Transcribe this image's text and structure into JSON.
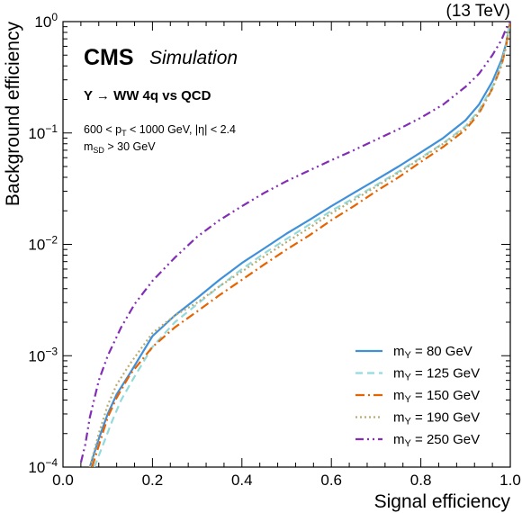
{
  "chart_data": {
    "type": "line",
    "energy_label": "(13 TeV)",
    "experiment": "CMS",
    "experiment_sub": "Simulation",
    "process_label": "Y → WW 4q vs QCD",
    "cut_label_1": "600 < p",
    "cut_label_1_sub": "T",
    "cut_label_1_rest": " < 1000 GeV, |η| < 2.4",
    "cut_label_2": "m",
    "cut_label_2_sub": "SD",
    "cut_label_2_rest": " > 30 GeV",
    "xlabel": "Signal efficiency",
    "ylabel": "Background efficiency",
    "xlim": [
      0.0,
      1.0
    ],
    "ylim": [
      0.0001,
      1
    ],
    "yscale": "log",
    "xticks": [
      "0.0",
      "0.2",
      "0.4",
      "0.6",
      "0.8",
      "1.0"
    ],
    "yticks": [
      {
        "base": "10",
        "exp": "−4",
        "value": 0.0001
      },
      {
        "base": "10",
        "exp": "−3",
        "value": 0.001
      },
      {
        "base": "10",
        "exp": "−2",
        "value": 0.01
      },
      {
        "base": "10",
        "exp": "−1",
        "value": 0.1
      },
      {
        "base": "10",
        "exp": "0",
        "value": 1
      }
    ],
    "legend_position": "lower-right",
    "series": [
      {
        "name": "m",
        "name_sub": "Y",
        "name_rest": " = 80 GeV",
        "color": "#3f90da",
        "style": "solid",
        "x": [
          0.06,
          0.08,
          0.1,
          0.12,
          0.15,
          0.2,
          0.25,
          0.3,
          0.35,
          0.4,
          0.45,
          0.5,
          0.55,
          0.6,
          0.65,
          0.7,
          0.75,
          0.8,
          0.85,
          0.9,
          0.93,
          0.96,
          0.98,
          0.99,
          1.0
        ],
        "y": [
          0.0001,
          0.00018,
          0.0003,
          0.00045,
          0.0007,
          0.0015,
          0.0023,
          0.0033,
          0.0048,
          0.0068,
          0.0092,
          0.0125,
          0.0165,
          0.022,
          0.029,
          0.038,
          0.05,
          0.067,
          0.09,
          0.13,
          0.18,
          0.29,
          0.45,
          0.62,
          1.0
        ]
      },
      {
        "name": "m",
        "name_sub": "Y",
        "name_rest": " = 125 GeV",
        "color": "#92dadd",
        "style": "dashed",
        "x": [
          0.07,
          0.09,
          0.11,
          0.13,
          0.16,
          0.2,
          0.25,
          0.3,
          0.35,
          0.4,
          0.45,
          0.5,
          0.55,
          0.6,
          0.65,
          0.7,
          0.75,
          0.8,
          0.85,
          0.9,
          0.93,
          0.96,
          0.98,
          0.99,
          1.0
        ],
        "y": [
          0.0001,
          0.00016,
          0.00026,
          0.0004,
          0.00065,
          0.0012,
          0.002,
          0.0029,
          0.0042,
          0.006,
          0.0083,
          0.0112,
          0.015,
          0.02,
          0.026,
          0.034,
          0.045,
          0.06,
          0.081,
          0.115,
          0.16,
          0.26,
          0.42,
          0.6,
          1.0
        ]
      },
      {
        "name": "m",
        "name_sub": "Y",
        "name_rest": " = 150 GeV",
        "color": "#e76300",
        "style": "dashdot",
        "x": [
          0.065,
          0.085,
          0.1,
          0.12,
          0.15,
          0.2,
          0.25,
          0.3,
          0.35,
          0.4,
          0.45,
          0.5,
          0.55,
          0.6,
          0.65,
          0.7,
          0.75,
          0.8,
          0.85,
          0.9,
          0.93,
          0.96,
          0.98,
          0.99,
          1.0
        ],
        "y": [
          0.0001,
          0.00018,
          0.00028,
          0.00042,
          0.00068,
          0.0012,
          0.0018,
          0.0025,
          0.0035,
          0.0048,
          0.0066,
          0.009,
          0.012,
          0.0165,
          0.022,
          0.03,
          0.04,
          0.055,
          0.075,
          0.107,
          0.15,
          0.25,
          0.4,
          0.58,
          1.0
        ]
      },
      {
        "name": "m",
        "name_sub": "Y",
        "name_rest": " = 190 GeV",
        "color": "#b9ac70",
        "style": "dotted",
        "x": [
          0.06,
          0.08,
          0.1,
          0.12,
          0.15,
          0.2,
          0.25,
          0.3,
          0.35,
          0.4,
          0.45,
          0.5,
          0.55,
          0.6,
          0.65,
          0.7,
          0.75,
          0.8,
          0.85,
          0.9,
          0.93,
          0.96,
          0.98,
          0.99,
          1.0
        ],
        "y": [
          0.0001,
          0.0002,
          0.00036,
          0.00055,
          0.00085,
          0.0016,
          0.0023,
          0.003,
          0.0042,
          0.0057,
          0.0078,
          0.0105,
          0.014,
          0.019,
          0.025,
          0.033,
          0.044,
          0.059,
          0.08,
          0.112,
          0.155,
          0.25,
          0.41,
          0.6,
          1.0
        ]
      },
      {
        "name": "m",
        "name_sub": "Y",
        "name_rest": " = 250 GeV",
        "color": "#832db6",
        "style": "dashdotdot",
        "x": [
          0.04,
          0.05,
          0.06,
          0.08,
          0.1,
          0.13,
          0.16,
          0.2,
          0.25,
          0.3,
          0.35,
          0.4,
          0.45,
          0.5,
          0.55,
          0.6,
          0.65,
          0.7,
          0.75,
          0.8,
          0.85,
          0.9,
          0.93,
          0.96,
          0.98,
          0.99,
          1.0
        ],
        "y": [
          0.00011,
          0.00016,
          0.00028,
          0.0006,
          0.001,
          0.0018,
          0.0029,
          0.0047,
          0.0076,
          0.0117,
          0.0165,
          0.022,
          0.029,
          0.037,
          0.046,
          0.057,
          0.07,
          0.087,
          0.108,
          0.137,
          0.18,
          0.26,
          0.34,
          0.5,
          0.68,
          0.85,
          1.0
        ]
      }
    ]
  }
}
